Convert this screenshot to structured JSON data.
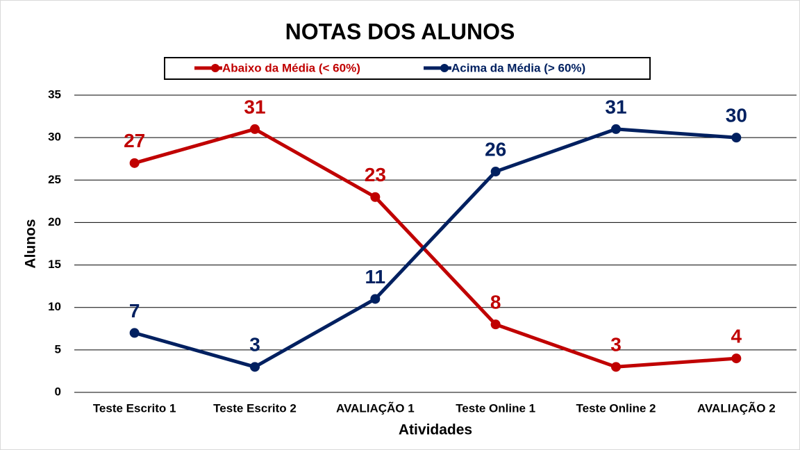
{
  "chart_data": {
    "type": "line",
    "title": "NOTAS DOS ALUNOS",
    "x_label": "Atividades",
    "y_label": "Alunos",
    "categories": [
      "Teste Escrito 1",
      "Teste Escrito 2",
      "AVALIAÇÃO 1",
      "Teste Online 1",
      "Teste Online 2",
      "AVALIAÇÃO 2"
    ],
    "series": [
      {
        "name": "Abaixo da Média (< 60%)",
        "color": "#c00000",
        "values": [
          27,
          31,
          23,
          8,
          3,
          4
        ]
      },
      {
        "name": "Acima da Média (> 60%)",
        "color": "#002060",
        "values": [
          7,
          3,
          11,
          26,
          31,
          30
        ]
      }
    ],
    "ylim": [
      0,
      35
    ],
    "yticks": [
      0,
      5,
      10,
      15,
      20,
      25,
      30,
      35
    ],
    "grid": true,
    "legend": "top"
  }
}
